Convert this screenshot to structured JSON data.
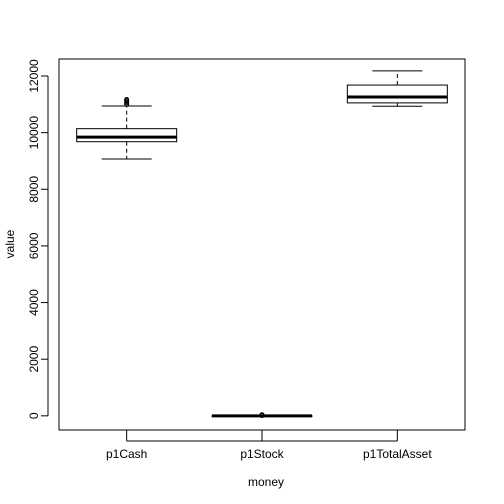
{
  "chart_data": {
    "type": "boxplot",
    "title": "",
    "xlabel": "money",
    "ylabel": "value",
    "ylim": [
      -500,
      12600
    ],
    "yticks": [
      0,
      2000,
      4000,
      6000,
      8000,
      10000,
      12000
    ],
    "grid": false,
    "legend": "none",
    "categories": [
      "p1Cash",
      "p1Stock",
      "p1TotalAsset"
    ],
    "boxes": [
      {
        "name": "p1Cash",
        "whisker_low": 9070,
        "q1": 9680,
        "median": 9840,
        "q3": 10140,
        "whisker_high": 10940,
        "outliers": [
          11000,
          11050,
          11090,
          11130,
          11170
        ]
      },
      {
        "name": "p1Stock",
        "whisker_low": 0,
        "q1": 0,
        "median": 0,
        "q3": 0,
        "whisker_high": 0,
        "outliers": [
          10,
          25,
          40
        ]
      },
      {
        "name": "p1TotalAsset",
        "whisker_low": 10930,
        "q1": 11050,
        "median": 11260,
        "q3": 11680,
        "whisker_high": 12180,
        "outliers": []
      }
    ]
  }
}
